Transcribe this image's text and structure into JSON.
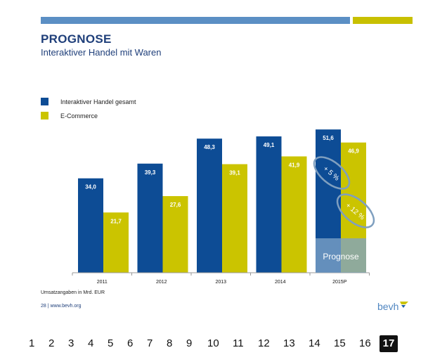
{
  "slide": {
    "title": "PROGNOSE",
    "subtitle": "Interaktiver Handel mit Waren",
    "source_note": "Umsatzangaben in Mrd. EUR",
    "footer": "28 | www.bevh.org",
    "logo_text": "bevh"
  },
  "colors": {
    "blue": "#0d4c95",
    "yellow": "#cbc400",
    "topbar_blue": "#5b8fc4",
    "topbar_yellow": "#c8c000",
    "title": "#1f3f7a"
  },
  "chart_data": {
    "type": "bar",
    "categories": [
      "2011",
      "2012",
      "2013",
      "2014",
      "2015P"
    ],
    "series": [
      {
        "name": "Interaktiver Handel gesamt",
        "values": [
          34.0,
          39.3,
          48.3,
          49.1,
          51.6
        ],
        "labels": [
          "34,0",
          "39,3",
          "48,3",
          "49,1",
          "51,6"
        ],
        "color": "#0d4c95"
      },
      {
        "name": "E-Commerce",
        "values": [
          21.7,
          27.6,
          39.1,
          41.9,
          46.9
        ],
        "labels": [
          "21,7",
          "27,6",
          "39,1",
          "41,9",
          "46,9"
        ],
        "color": "#cbc400"
      }
    ],
    "ylim": [
      0,
      60
    ],
    "grid": false,
    "legend": "top-left",
    "annotations": [
      {
        "text": "+ 5 %",
        "series": "Interaktiver Handel gesamt"
      },
      {
        "text": "+ 12 %",
        "series": "E-Commerce"
      }
    ],
    "forecast_label": "Prognose"
  },
  "pagination": {
    "pages": [
      "1",
      "2",
      "3",
      "4",
      "5",
      "6",
      "7",
      "8",
      "9",
      "10",
      "11",
      "12",
      "13",
      "14",
      "15",
      "16",
      "17"
    ],
    "current": "17"
  }
}
